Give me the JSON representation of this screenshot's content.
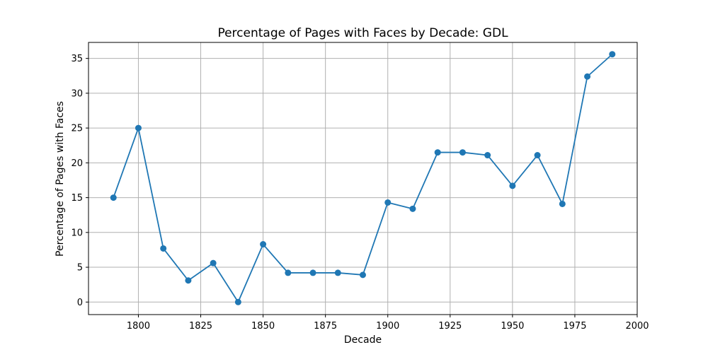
{
  "chart_data": {
    "type": "line",
    "title": "Percentage of Pages with Faces by Decade: GDL",
    "xlabel": "Decade",
    "ylabel": "Percentage of Pages with Faces",
    "xlim": [
      1780,
      2000
    ],
    "ylim": [
      -1.8,
      37.3
    ],
    "xticks": [
      1800,
      1825,
      1850,
      1875,
      1900,
      1925,
      1950,
      1975,
      2000
    ],
    "yticks": [
      0,
      5,
      10,
      15,
      20,
      25,
      30,
      35
    ],
    "grid": true,
    "marker": "circle",
    "series": [
      {
        "color": "#1f77b4",
        "x": [
          1790,
          1800,
          1810,
          1820,
          1830,
          1840,
          1850,
          1860,
          1870,
          1880,
          1890,
          1900,
          1910,
          1920,
          1930,
          1940,
          1950,
          1960,
          1970,
          1980,
          1990
        ],
        "values": [
          15.0,
          25.0,
          7.7,
          3.1,
          5.6,
          0.0,
          8.3,
          4.2,
          4.2,
          4.2,
          3.9,
          14.3,
          13.4,
          21.5,
          21.5,
          21.1,
          16.7,
          21.1,
          14.1,
          32.4,
          35.6
        ]
      }
    ],
    "grid_color": "#b0b0b0"
  }
}
